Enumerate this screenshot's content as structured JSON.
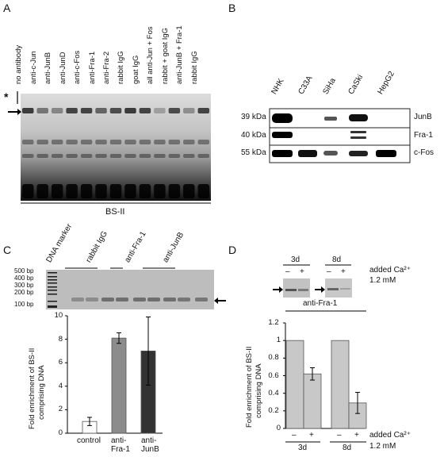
{
  "panels": {
    "A": {
      "letter": "A",
      "lanes": [
        "no antibody",
        "anti-c-Jun",
        "anti-JunB",
        "anti-JunD",
        "anti-c-Fos",
        "anti-Fra-1",
        "anti-Fra-2",
        "rabbit IgG",
        "goat IgG",
        "all anti-Jun + Fos",
        "rabbit + goat IgG",
        "anti-JunB + Fra-1",
        "rabbit IgG"
      ],
      "star": "*",
      "caption": "BS-II"
    },
    "B": {
      "letter": "B",
      "lanes": [
        "NHK",
        "C33A",
        "SiHa",
        "CaSki",
        "HepG2"
      ],
      "rows": [
        {
          "mw": "39 kDa",
          "protein": "JunB"
        },
        {
          "mw": "40 kDa",
          "protein": "Fra-1"
        },
        {
          "mw": "55 kDa",
          "protein": "c-Fos"
        }
      ]
    },
    "C": {
      "letter": "C",
      "gel_lanes": [
        "DNA marker",
        "rabbit IgG",
        "anti-Fra-1",
        "anti-JunB"
      ],
      "markers": [
        "500 bp",
        "400 bp",
        "300 bp",
        "200 bp",
        "100 bp"
      ],
      "ylabel_line1": "Fold enrichment of BS-II",
      "ylabel_line2": "comprising DNA",
      "yticks": [
        "0",
        "2",
        "4",
        "6",
        "8",
        "10"
      ],
      "xlabels": [
        [
          "control"
        ],
        [
          "anti-",
          "Fra-1"
        ],
        [
          "anti-",
          "JunB"
        ]
      ]
    },
    "D": {
      "letter": "D",
      "gel_days": [
        "3d",
        "8d"
      ],
      "minus": "–",
      "plus": "+",
      "calcium_line1": "added Ca²⁺",
      "calcium_line2": "1.2 mM",
      "antibody": "anti-Fra-1",
      "ylabel_line1": "Fold enrichment of BS-II",
      "ylabel_line2": "comprising DNA",
      "yticks": [
        "0",
        "0.2",
        "0.4",
        "0.6",
        "0.8",
        "1",
        "1.2"
      ],
      "days": [
        "3d",
        "8d"
      ]
    }
  },
  "chart_data": [
    {
      "type": "bar",
      "categories": [
        "control",
        "anti-Fra-1",
        "anti-JunB"
      ],
      "values": [
        1.0,
        8.1,
        7.0
      ],
      "errors": [
        0.35,
        0.45,
        2.9
      ],
      "colors": [
        "#ffffff",
        "#8c8c8c",
        "#333333"
      ],
      "title": "",
      "xlabel": "",
      "ylabel": "Fold enrichment of BS-II comprising DNA",
      "ylim": [
        0,
        10
      ]
    },
    {
      "type": "bar",
      "categories": [
        "3d –",
        "3d +",
        "8d –",
        "8d +"
      ],
      "values": [
        1.0,
        0.62,
        1.0,
        0.29
      ],
      "errors": [
        0,
        0.07,
        0,
        0.12
      ],
      "colors": [
        "#c8c8c8",
        "#c8c8c8",
        "#c8c8c8",
        "#c8c8c8"
      ],
      "title": "anti-Fra-1",
      "xlabel": "added Ca²⁺ 1.2 mM",
      "ylabel": "Fold enrichment of BS-II comprising DNA",
      "ylim": [
        0,
        1.2
      ]
    }
  ]
}
